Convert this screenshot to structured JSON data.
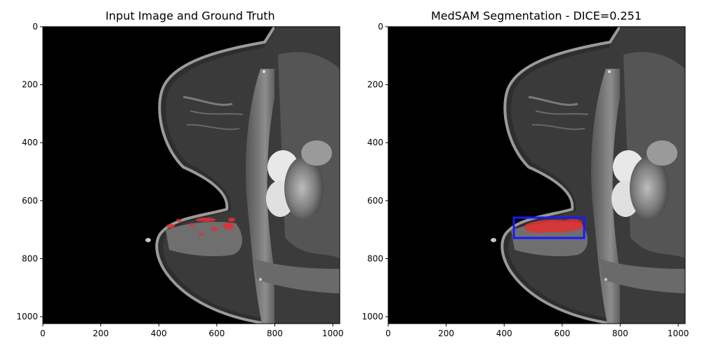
{
  "panels": [
    {
      "title": "Input Image and Ground Truth",
      "xticks": [
        "0",
        "200",
        "400",
        "600",
        "800",
        "1000"
      ],
      "yticks": [
        "0",
        "200",
        "400",
        "600",
        "800",
        "1000"
      ]
    },
    {
      "title": "MedSAM Segmentation - DICE=0.251",
      "xticks": [
        "0",
        "200",
        "400",
        "600",
        "800",
        "1000"
      ],
      "yticks": [
        "0",
        "200",
        "400",
        "600",
        "800",
        "1000"
      ]
    }
  ],
  "colors": {
    "mask": "#e53030",
    "box": "#1a1aff",
    "tissue": "#8a8a8a",
    "background": "#000000"
  }
}
